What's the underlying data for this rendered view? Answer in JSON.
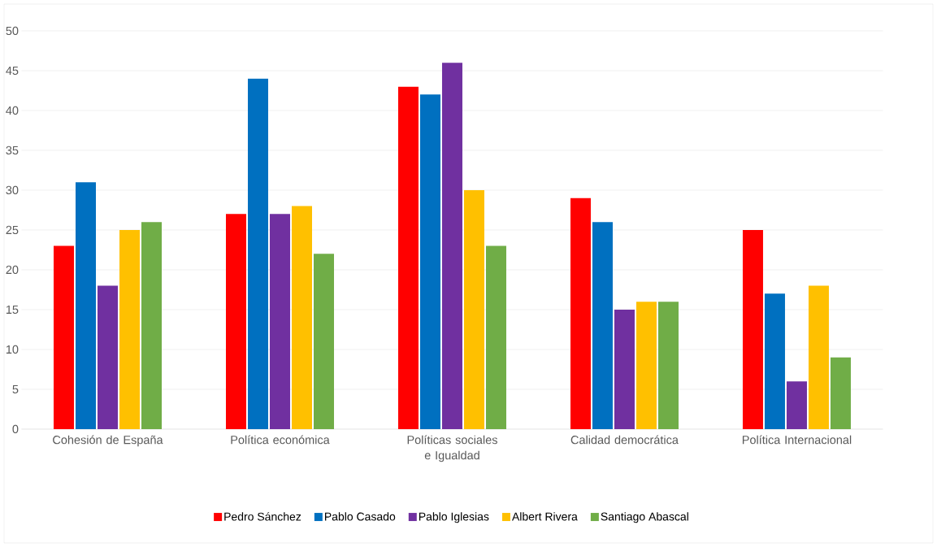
{
  "chart_data": {
    "type": "bar",
    "categories": [
      "Cohesión de España",
      "Política económica",
      "Políticas sociales e Igualdad",
      "Calidad democrática",
      "Política Internacional"
    ],
    "series": [
      {
        "name": "Pedro Sánchez",
        "color": "#ff0000",
        "values": [
          23,
          27,
          43,
          29,
          25
        ]
      },
      {
        "name": "Pablo Casado",
        "color": "#0070c0",
        "values": [
          31,
          44,
          42,
          26,
          17
        ]
      },
      {
        "name": "Pablo Iglesias",
        "color": "#7030a0",
        "values": [
          18,
          27,
          46,
          15,
          6
        ]
      },
      {
        "name": "Albert Rivera",
        "color": "#ffc000",
        "values": [
          25,
          28,
          30,
          16,
          18
        ]
      },
      {
        "name": "Santiago Abascal",
        "color": "#70ad47",
        "values": [
          26,
          22,
          23,
          16,
          9
        ]
      }
    ],
    "ylim": [
      0,
      50
    ],
    "yticks": [
      0,
      5,
      10,
      15,
      20,
      25,
      30,
      35,
      40,
      45,
      50
    ],
    "grid": "y",
    "legend": "bottom"
  }
}
